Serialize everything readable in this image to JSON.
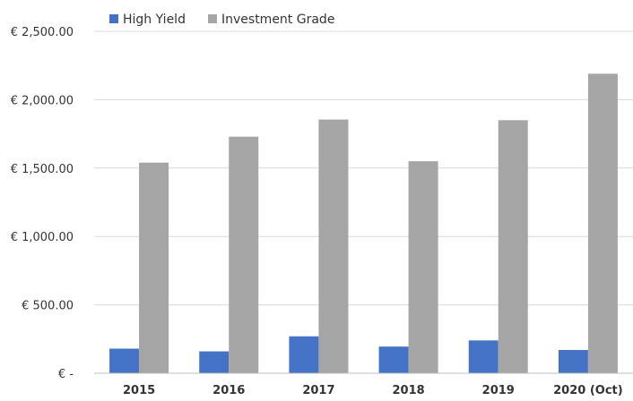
{
  "chart_data": {
    "type": "bar",
    "title": "",
    "xlabel": "",
    "ylabel": "",
    "categories": [
      "2015",
      "2016",
      "2017",
      "2018",
      "2019",
      "2020 (Oct)"
    ],
    "series": [
      {
        "name": "High Yield",
        "color": "#4472c4",
        "values": [
          180,
          160,
          270,
          195,
          240,
          170
        ]
      },
      {
        "name": "Investment Grade",
        "color": "#a5a5a5",
        "values": [
          1540,
          1730,
          1855,
          1550,
          1850,
          2190
        ]
      }
    ],
    "ylim": [
      0,
      2500
    ],
    "yticks": [
      0,
      500,
      1000,
      1500,
      2000,
      2500
    ],
    "ytick_labels": [
      "€ -",
      "€ 500.00",
      "€ 1,000.00",
      "€ 1,500.00",
      "€ 2,000.00",
      "€ 2,500.00"
    ],
    "grid": true,
    "legend_position": "top-left"
  }
}
